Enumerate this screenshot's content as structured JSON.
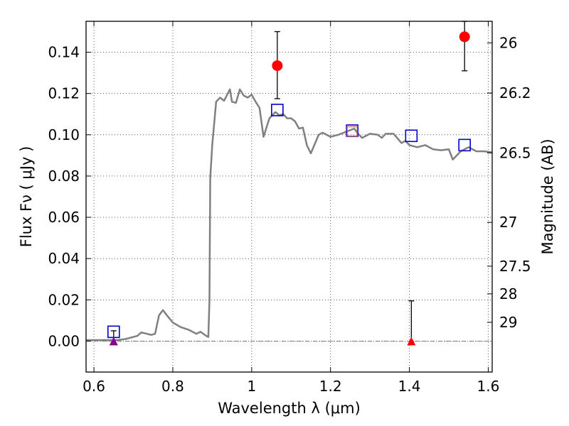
{
  "chart_data": {
    "type": "line",
    "xlabel": "Wavelength  λ (μm)",
    "ylabel": "Flux  Fν  ( μJy )",
    "y2label": "Magnitude (AB)",
    "xlim": [
      0.58,
      1.61
    ],
    "ylim": [
      -0.015,
      0.155
    ],
    "grid": true,
    "x_ticks": [
      {
        "value": 0.6,
        "label": "0.6"
      },
      {
        "value": 0.8,
        "label": "0.8"
      },
      {
        "value": 1.0,
        "label": "1"
      },
      {
        "value": 1.2,
        "label": "1.2"
      },
      {
        "value": 1.4,
        "label": "1.4"
      },
      {
        "value": 1.6,
        "label": "1.6"
      }
    ],
    "y_ticks": [
      {
        "value": 0.0,
        "label": "0.00"
      },
      {
        "value": 0.02,
        "label": "0.02"
      },
      {
        "value": 0.04,
        "label": "0.04"
      },
      {
        "value": 0.06,
        "label": "0.06"
      },
      {
        "value": 0.08,
        "label": "0.08"
      },
      {
        "value": 0.1,
        "label": "0.10"
      },
      {
        "value": 0.12,
        "label": "0.12"
      },
      {
        "value": 0.14,
        "label": "0.14"
      }
    ],
    "y2_ticks": [
      {
        "mag": 26,
        "label": "26"
      },
      {
        "mag": 26.2,
        "label": "26.2"
      },
      {
        "mag": 26.5,
        "label": "26.5"
      },
      {
        "mag": 27,
        "label": "27"
      },
      {
        "mag": 27.5,
        "label": "27.5"
      },
      {
        "mag": 28,
        "label": "28"
      },
      {
        "mag": 29,
        "label": "29"
      }
    ],
    "series": [
      {
        "name": "model SED",
        "kind": "line",
        "color": "#808080",
        "x": [
          0.58,
          0.66,
          0.68,
          0.7,
          0.71,
          0.72,
          0.735,
          0.745,
          0.755,
          0.765,
          0.775,
          0.785,
          0.8,
          0.82,
          0.84,
          0.86,
          0.87,
          0.885,
          0.89,
          0.893,
          0.895,
          0.9,
          0.91,
          0.92,
          0.93,
          0.945,
          0.95,
          0.96,
          0.97,
          0.98,
          0.99,
          1.0,
          1.01,
          1.02,
          1.03,
          1.045,
          1.06,
          1.07,
          1.08,
          1.09,
          1.1,
          1.11,
          1.12,
          1.13,
          1.14,
          1.15,
          1.17,
          1.18,
          1.2,
          1.22,
          1.24,
          1.26,
          1.27,
          1.28,
          1.3,
          1.32,
          1.33,
          1.34,
          1.36,
          1.38,
          1.39,
          1.4,
          1.42,
          1.44,
          1.46,
          1.48,
          1.5,
          1.51,
          1.53,
          1.55,
          1.57,
          1.59,
          1.61
        ],
        "y": [
          0.0005,
          0.0005,
          0.001,
          0.002,
          0.0025,
          0.0042,
          0.0035,
          0.003,
          0.0035,
          0.0125,
          0.015,
          0.0125,
          0.009,
          0.0068,
          0.0055,
          0.0035,
          0.0045,
          0.0025,
          0.002,
          0.02,
          0.079,
          0.095,
          0.116,
          0.118,
          0.1165,
          0.122,
          0.116,
          0.1155,
          0.122,
          0.119,
          0.118,
          0.1195,
          0.116,
          0.113,
          0.099,
          0.108,
          0.111,
          0.1095,
          0.11,
          0.108,
          0.108,
          0.1065,
          0.103,
          0.1035,
          0.095,
          0.091,
          0.1,
          0.101,
          0.099,
          0.1,
          0.1015,
          0.103,
          0.1005,
          0.0985,
          0.1005,
          0.1,
          0.0985,
          0.1005,
          0.1005,
          0.096,
          0.097,
          0.095,
          0.094,
          0.095,
          0.093,
          0.0925,
          0.093,
          0.088,
          0.092,
          0.094,
          0.092,
          0.092,
          0.0915
        ]
      },
      {
        "name": "model photometry",
        "kind": "open-square",
        "color": "#0000cc",
        "points": [
          {
            "x": 0.65,
            "y": 0.0045
          },
          {
            "x": 1.065,
            "y": 0.112
          },
          {
            "x": 1.255,
            "y": 0.102
          },
          {
            "x": 1.405,
            "y": 0.0995
          },
          {
            "x": 1.54,
            "y": 0.095
          }
        ]
      },
      {
        "name": "detections",
        "kind": "red-circle",
        "color": "#ff0000",
        "points": [
          {
            "x": 1.065,
            "y": 0.1335,
            "lo": 0.1175,
            "hi": 0.15
          },
          {
            "x": 1.54,
            "y": 0.1475,
            "lo": 0.131,
            "hi": 0.155
          }
        ]
      },
      {
        "name": "J-band marker",
        "kind": "faint-square",
        "color": "#cd5c5c",
        "points": [
          {
            "x": 1.255,
            "y": 0.1015
          }
        ]
      },
      {
        "name": "upper limits",
        "kind": "triangle",
        "points": [
          {
            "x": 0.65,
            "y": 0.0,
            "hi": 0.005,
            "color": "#8b008b"
          },
          {
            "x": 1.405,
            "y": 0.0,
            "hi": 0.0195,
            "color": "#ff0000"
          }
        ]
      }
    ]
  }
}
